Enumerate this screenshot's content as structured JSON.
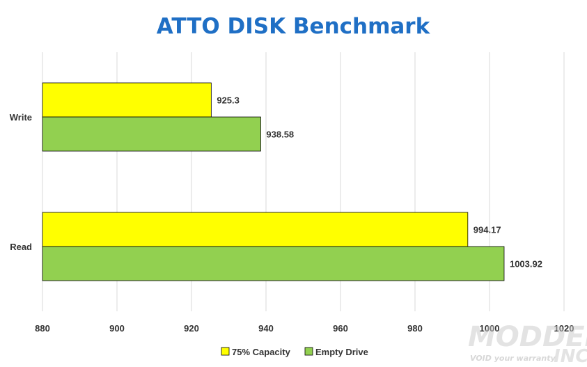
{
  "chart_data": {
    "type": "bar",
    "orientation": "horizontal",
    "title": "ATTO DISK Benchmark",
    "categories": [
      "Write",
      "Read"
    ],
    "series": [
      {
        "name": "75% Capacity",
        "values": [
          925.3,
          994.17
        ],
        "labels": [
          "925.3",
          "994.17"
        ],
        "color": "#ffff00"
      },
      {
        "name": "Empty Drive",
        "values": [
          938.58,
          1003.92
        ],
        "labels": [
          "938.58",
          "1003.92"
        ],
        "color": "#92d050"
      }
    ],
    "xlim": [
      880,
      1020
    ],
    "xticks": [
      880,
      900,
      920,
      940,
      960,
      980,
      1000,
      1020
    ],
    "grid": true,
    "legend_position": "bottom",
    "colors": {
      "title": "#1f6fc5",
      "grid": "#d9d9d9",
      "bar_stroke": "#000000"
    }
  },
  "watermark": {
    "line1": "MODDERS",
    "line2": "INC.",
    "tagline": "VOID your warranty"
  }
}
